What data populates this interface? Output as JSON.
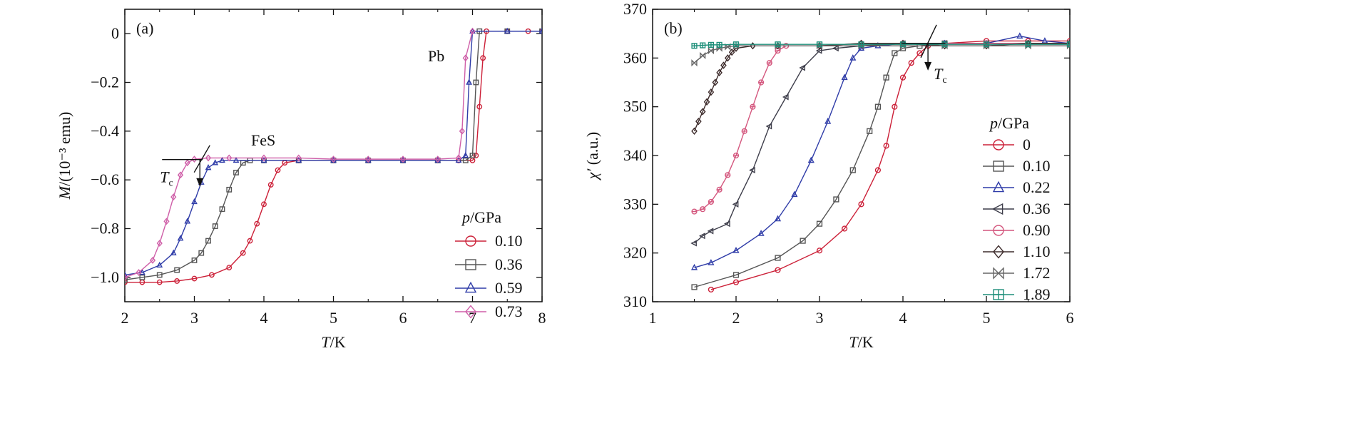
{
  "chart_data": [
    {
      "panel_label": "(a)",
      "type": "line",
      "xlabel_var": "T",
      "xlabel_unit": "/K",
      "ylabel_var": "M",
      "ylabel_unit": "/(10⁻³ emu)",
      "xlim": [
        2,
        8
      ],
      "ylim": [
        -1.1,
        0.1
      ],
      "xticks": [
        2,
        3,
        4,
        5,
        6,
        7,
        8
      ],
      "xtick_labels": [
        "2",
        "3",
        "4",
        "5",
        "6",
        "7",
        "8"
      ],
      "yticks": [
        0,
        -0.2,
        -0.4,
        -0.6,
        -0.8,
        -1.0
      ],
      "ytick_labels": [
        "0",
        "−0.2",
        "−0.4",
        "−0.6",
        "−0.8",
        "−1.0"
      ],
      "legend_title_var": "p",
      "legend_title_unit": "/GPa",
      "legend_position": "bottom-right",
      "annotations": {
        "pb": "Pb",
        "fes": "FeS",
        "tc_var": "T",
        "tc_sub": "c",
        "tc_marker": {
          "x": 3.1,
          "y": -0.505
        }
      },
      "series": [
        {
          "name": "0.10",
          "color": "#cc2038",
          "marker": "circle",
          "x": [
            2.0,
            2.25,
            2.5,
            2.75,
            3.0,
            3.25,
            3.5,
            3.7,
            3.8,
            3.9,
            4.0,
            4.1,
            4.2,
            4.3,
            4.5,
            5.0,
            5.5,
            6.0,
            6.5,
            6.8,
            7.0,
            7.05,
            7.1,
            7.15,
            7.2,
            7.5,
            7.8,
            8.0
          ],
          "y": [
            -1.02,
            -1.02,
            -1.02,
            -1.015,
            -1.005,
            -0.99,
            -0.96,
            -0.9,
            -0.85,
            -0.78,
            -0.7,
            -0.62,
            -0.56,
            -0.53,
            -0.52,
            -0.52,
            -0.52,
            -0.52,
            -0.52,
            -0.52,
            -0.52,
            -0.5,
            -0.3,
            -0.1,
            0.01,
            0.01,
            0.01,
            0.01
          ]
        },
        {
          "name": "0.36",
          "color": "#555555",
          "marker": "square",
          "x": [
            2.0,
            2.25,
            2.5,
            2.75,
            3.0,
            3.1,
            3.2,
            3.3,
            3.4,
            3.5,
            3.6,
            3.7,
            3.8,
            4.0,
            4.5,
            5.0,
            5.5,
            6.0,
            6.5,
            6.9,
            7.0,
            7.05,
            7.1,
            7.5,
            8.0
          ],
          "y": [
            -1.01,
            -1.0,
            -0.99,
            -0.97,
            -0.93,
            -0.9,
            -0.85,
            -0.79,
            -0.72,
            -0.64,
            -0.57,
            -0.53,
            -0.52,
            -0.52,
            -0.52,
            -0.52,
            -0.52,
            -0.52,
            -0.52,
            -0.52,
            -0.5,
            -0.2,
            0.01,
            0.01,
            0.01
          ]
        },
        {
          "name": "0.59",
          "color": "#2f3ca8",
          "marker": "triangle",
          "x": [
            2.0,
            2.25,
            2.5,
            2.7,
            2.8,
            2.9,
            3.0,
            3.1,
            3.2,
            3.3,
            3.4,
            3.6,
            4.0,
            4.5,
            5.0,
            5.5,
            6.0,
            6.5,
            6.8,
            6.9,
            6.95,
            7.0,
            7.5,
            8.0
          ],
          "y": [
            -0.99,
            -0.98,
            -0.95,
            -0.9,
            -0.84,
            -0.77,
            -0.69,
            -0.61,
            -0.55,
            -0.53,
            -0.52,
            -0.52,
            -0.52,
            -0.52,
            -0.52,
            -0.52,
            -0.52,
            -0.52,
            -0.52,
            -0.5,
            -0.2,
            0.01,
            0.01,
            0.01
          ]
        },
        {
          "name": "0.73",
          "color": "#cf5fa8",
          "marker": "diamond",
          "x": [
            2.0,
            2.2,
            2.4,
            2.5,
            2.6,
            2.7,
            2.8,
            2.9,
            3.0,
            3.2,
            3.5,
            4.0,
            4.5,
            5.0,
            5.5,
            6.0,
            6.5,
            6.8,
            6.85,
            6.9,
            7.0
          ],
          "y": [
            -1.0,
            -0.98,
            -0.93,
            -0.86,
            -0.77,
            -0.67,
            -0.58,
            -0.53,
            -0.515,
            -0.51,
            -0.51,
            -0.51,
            -0.51,
            -0.515,
            -0.515,
            -0.515,
            -0.515,
            -0.51,
            -0.4,
            -0.1,
            0.01
          ]
        }
      ]
    },
    {
      "panel_label": "(b)",
      "type": "line",
      "xlabel_var": "T",
      "xlabel_unit": "/K",
      "ylabel_var": "χ′",
      "ylabel_unit": " (a.u.)",
      "xlim": [
        1,
        6
      ],
      "ylim": [
        310,
        370
      ],
      "xticks": [
        1,
        2,
        3,
        4,
        5,
        6
      ],
      "xtick_labels": [
        "1",
        "2",
        "3",
        "4",
        "5",
        "6"
      ],
      "yticks": [
        310,
        320,
        330,
        340,
        350,
        360,
        370
      ],
      "ytick_labels": [
        "310",
        "320",
        "330",
        "340",
        "350",
        "360",
        "370"
      ],
      "legend_title_var": "p",
      "legend_title_unit": "/GPa",
      "legend_position": "right",
      "annotations": {
        "tc_var": "T",
        "tc_sub": "c",
        "tc_marker": {
          "x": 4.3,
          "y": 363
        }
      },
      "series": [
        {
          "name": "0",
          "color": "#cc2038",
          "marker": "circle",
          "x": [
            1.7,
            2.0,
            2.5,
            3.0,
            3.3,
            3.5,
            3.7,
            3.8,
            3.9,
            4.0,
            4.1,
            4.2,
            4.3,
            4.5,
            5.0,
            5.5,
            6.0
          ],
          "y": [
            312.5,
            314,
            316.5,
            320.5,
            325,
            330,
            337,
            342,
            350,
            356,
            359,
            361,
            362.5,
            363,
            363.5,
            363.5,
            363.5
          ]
        },
        {
          "name": "0.10",
          "color": "#555555",
          "marker": "square",
          "x": [
            1.5,
            2.0,
            2.5,
            2.8,
            3.0,
            3.2,
            3.4,
            3.6,
            3.7,
            3.8,
            3.9,
            4.0,
            4.2,
            4.5,
            5.0,
            5.5,
            6.0
          ],
          "y": [
            313,
            315.5,
            319,
            322.5,
            326,
            331,
            337,
            345,
            350,
            356,
            361,
            362,
            362.5,
            363,
            363,
            363,
            363
          ]
        },
        {
          "name": "0.22",
          "color": "#2f3ca8",
          "marker": "triangle",
          "x": [
            1.5,
            1.7,
            2.0,
            2.3,
            2.5,
            2.7,
            2.9,
            3.1,
            3.3,
            3.4,
            3.5,
            3.7,
            4.0,
            4.5,
            5.0,
            5.4,
            5.7,
            6.0
          ],
          "y": [
            317,
            318,
            320.5,
            324,
            327,
            332,
            339,
            347,
            356,
            360,
            362,
            362.5,
            363,
            363,
            363,
            364.5,
            363.5,
            363
          ]
        },
        {
          "name": "0.36",
          "color": "#3d3d4a",
          "marker": "tri-left",
          "x": [
            1.5,
            1.6,
            1.7,
            1.9,
            2.0,
            2.2,
            2.4,
            2.6,
            2.8,
            3.0,
            3.2,
            3.5,
            4.0,
            4.5,
            5.0,
            5.5,
            6.0
          ],
          "y": [
            322,
            323.5,
            324.5,
            326,
            330,
            337,
            346,
            352,
            358,
            361.5,
            362,
            362.5,
            363,
            363,
            363,
            363,
            363
          ]
        },
        {
          "name": "0.90",
          "color": "#d4577e",
          "marker": "circle-dash",
          "x": [
            1.5,
            1.6,
            1.7,
            1.8,
            1.9,
            2.0,
            2.1,
            2.2,
            2.3,
            2.4,
            2.5,
            2.6,
            3.0,
            3.5,
            4.0,
            5.0,
            6.0
          ],
          "y": [
            328.5,
            329,
            330.5,
            333,
            336,
            340,
            345,
            350,
            355,
            359,
            361.5,
            362.5,
            362.5,
            363,
            363,
            363,
            363
          ]
        },
        {
          "name": "1.10",
          "color": "#3d2b2b",
          "marker": "diamond",
          "x": [
            1.5,
            1.55,
            1.6,
            1.65,
            1.7,
            1.75,
            1.8,
            1.85,
            1.9,
            1.95,
            2.0,
            2.2,
            2.5,
            3.0,
            3.5,
            4.0,
            4.5,
            5.0,
            5.5,
            6.0
          ],
          "y": [
            345,
            347,
            349,
            351,
            353,
            355,
            357,
            358.5,
            360,
            361.2,
            362,
            362.5,
            362.5,
            362.5,
            363,
            363,
            362.5,
            362.5,
            363,
            363
          ]
        },
        {
          "name": "1.72",
          "color": "#666666",
          "marker": "bowtie",
          "x": [
            1.5,
            1.6,
            1.7,
            1.8,
            1.9,
            2.0,
            2.5,
            3.0,
            3.5,
            4.0,
            4.5,
            5.0,
            5.5,
            6.0
          ],
          "y": [
            359,
            360.5,
            361.5,
            362,
            362.3,
            362.5,
            362.5,
            362.5,
            362.5,
            362.5,
            362.5,
            362.5,
            362.5,
            362.5
          ]
        },
        {
          "name": "1.89",
          "color": "#1f8f7a",
          "marker": "square-plus",
          "x": [
            1.5,
            1.6,
            1.7,
            1.8,
            2.0,
            2.5,
            3.0,
            3.5,
            4.0,
            4.5,
            5.0,
            5.5,
            6.0
          ],
          "y": [
            362.5,
            362.6,
            362.7,
            362.7,
            362.8,
            362.8,
            362.8,
            362.8,
            362.8,
            362.8,
            362.8,
            362.8,
            362.8
          ]
        }
      ]
    }
  ]
}
